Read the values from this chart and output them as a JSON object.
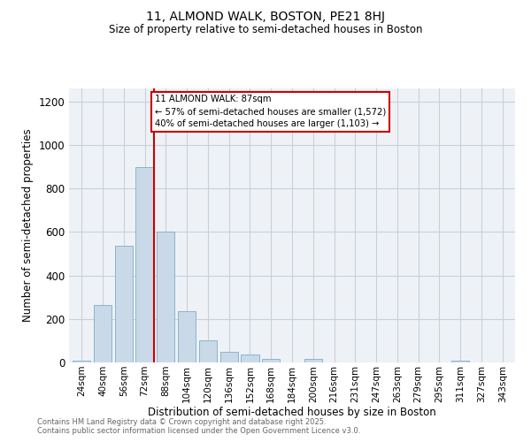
{
  "title": "11, ALMOND WALK, BOSTON, PE21 8HJ",
  "subtitle": "Size of property relative to semi-detached houses in Boston",
  "xlabel": "Distribution of semi-detached houses by size in Boston",
  "ylabel": "Number of semi-detached properties",
  "bar_categories": [
    "24sqm",
    "40sqm",
    "56sqm",
    "72sqm",
    "88sqm",
    "104sqm",
    "120sqm",
    "136sqm",
    "152sqm",
    "168sqm",
    "184sqm",
    "200sqm",
    "216sqm",
    "231sqm",
    "247sqm",
    "263sqm",
    "279sqm",
    "295sqm",
    "311sqm",
    "327sqm",
    "343sqm"
  ],
  "bar_values": [
    10,
    265,
    535,
    900,
    600,
    235,
    100,
    50,
    35,
    15,
    0,
    15,
    0,
    0,
    0,
    0,
    0,
    0,
    10,
    0,
    0
  ],
  "bar_color": "#c9d9e8",
  "bar_edge_color": "#8ab4cc",
  "vline_color": "#cc0000",
  "annotation_box_color": "#cc0000",
  "grid_color": "#c8d0d8",
  "bg_color": "#eef2f6",
  "ylim": [
    0,
    1260
  ],
  "yticks": [
    0,
    200,
    400,
    600,
    800,
    1000,
    1200
  ],
  "footnote1": "Contains HM Land Registry data © Crown copyright and database right 2025.",
  "footnote2": "Contains public sector information licensed under the Open Government Licence v3.0."
}
